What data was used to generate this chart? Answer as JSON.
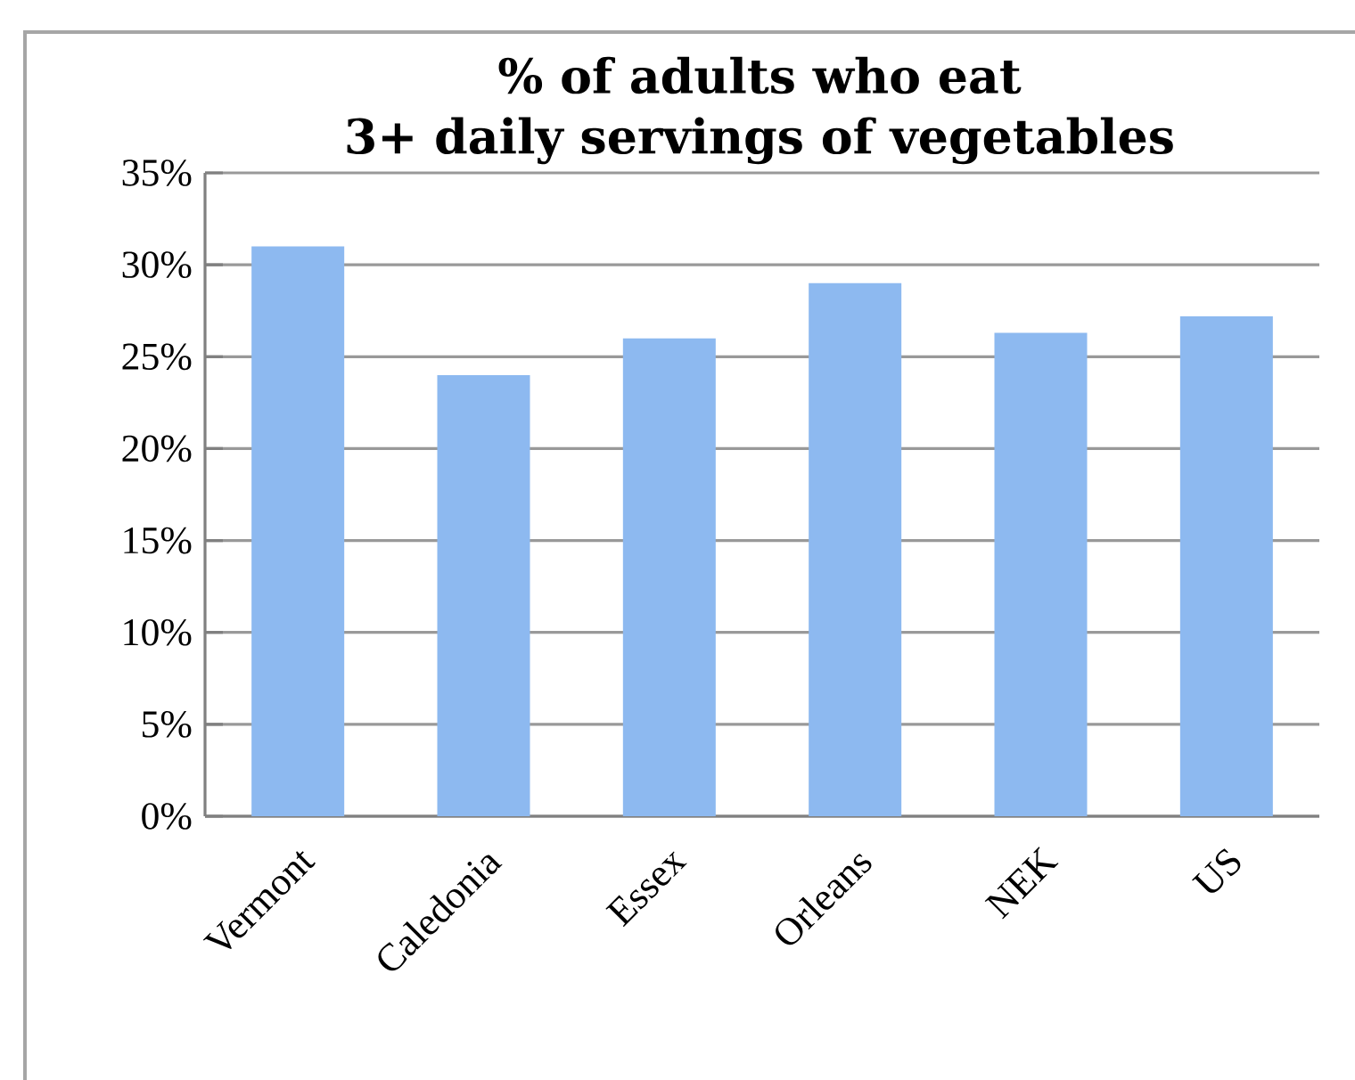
{
  "chart_data": {
    "type": "bar",
    "title": "% of adults who eat\n3+ daily servings of vegetables",
    "categories": [
      "Vermont",
      "Caledonia",
      "Essex",
      "Orleans",
      "NEK",
      "US"
    ],
    "values": [
      31,
      24,
      26,
      29,
      26.3,
      27.2
    ],
    "color": "#8db9f0",
    "ylim": [
      0,
      35
    ],
    "yticks": [
      {
        "value": 0,
        "label": "0%"
      },
      {
        "value": 5,
        "label": "5%"
      },
      {
        "value": 10,
        "label": "10%"
      },
      {
        "value": 15,
        "label": "15%"
      },
      {
        "value": 20,
        "label": "20%"
      },
      {
        "value": 25,
        "label": "25%"
      },
      {
        "value": 30,
        "label": "30%"
      },
      {
        "value": 35,
        "label": "35%"
      }
    ],
    "grid": "y"
  }
}
